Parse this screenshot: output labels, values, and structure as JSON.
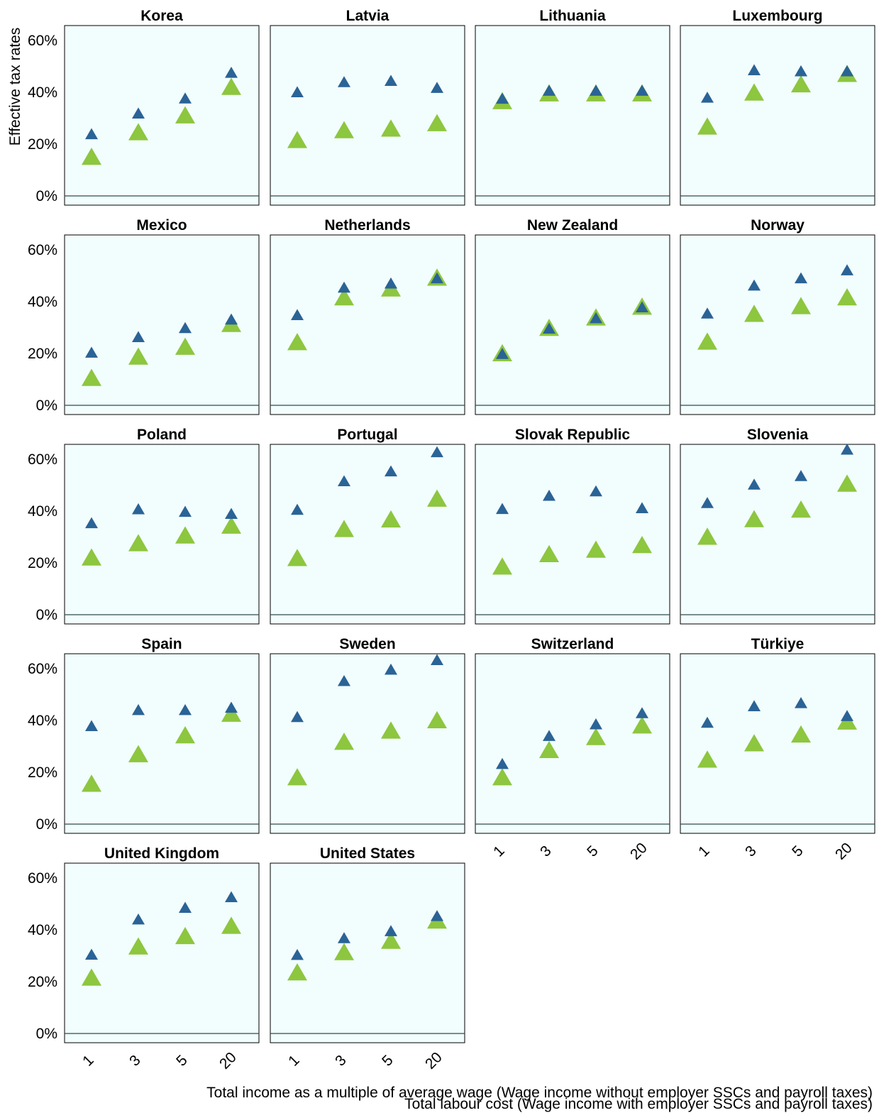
{
  "chart_data": {
    "type": "scatter",
    "ylabel": "Effective tax rates",
    "yticks": [
      "0%",
      "20%",
      "40%",
      "60%"
    ],
    "ylim": [
      -0.03,
      0.66
    ],
    "categories": [
      "1",
      "3",
      "5",
      "20"
    ],
    "colors": {
      "total_income": "#2a6396",
      "labour_cost": "#8dc63f",
      "panel_bg": "#f2fdfd",
      "zero_line": "#304b4b"
    },
    "legend": {
      "total_income": "Total income as a multiple of average wage (Wage income without employer SSCs and payroll taxes)",
      "labour_cost": "Total labour cost (Wage income with employer SSCs and payroll taxes)"
    },
    "panels": [
      {
        "title": "Korea",
        "total_income": [
          0.235,
          0.315,
          0.373,
          0.472
        ],
        "labour_cost": [
          0.145,
          0.24,
          0.305,
          0.415
        ]
      },
      {
        "title": "Latvia",
        "total_income": [
          0.397,
          0.436,
          0.441,
          0.414
        ],
        "labour_cost": [
          0.21,
          0.248,
          0.254,
          0.275
        ]
      },
      {
        "title": "Lithuania",
        "total_income": [
          0.372,
          0.403,
          0.403,
          0.403
        ],
        "labour_cost": [
          0.36,
          0.39,
          0.39,
          0.39
        ]
      },
      {
        "title": "Luxembourg",
        "total_income": [
          0.376,
          0.482,
          0.478,
          0.478
        ],
        "labour_cost": [
          0.262,
          0.393,
          0.425,
          0.465
        ]
      },
      {
        "title": "Mexico",
        "total_income": [
          0.2,
          0.26,
          0.295,
          0.328
        ],
        "labour_cost": [
          0.1,
          0.182,
          0.22,
          0.308
        ]
      },
      {
        "title": "Netherlands",
        "total_income": [
          0.345,
          0.451,
          0.467,
          0.487
        ],
        "labour_cost": [
          0.238,
          0.411,
          0.445,
          0.487
        ]
      },
      {
        "title": "New Zealand",
        "total_income": [
          0.195,
          0.293,
          0.333,
          0.375
        ],
        "labour_cost": [
          0.195,
          0.293,
          0.333,
          0.375
        ]
      },
      {
        "title": "Norway",
        "total_income": [
          0.351,
          0.459,
          0.487,
          0.518
        ],
        "labour_cost": [
          0.24,
          0.347,
          0.377,
          0.411
        ]
      },
      {
        "title": "Poland",
        "total_income": [
          0.35,
          0.404,
          0.394,
          0.386
        ],
        "labour_cost": [
          0.215,
          0.27,
          0.3,
          0.338
        ]
      },
      {
        "title": "Portugal",
        "total_income": [
          0.402,
          0.512,
          0.55,
          0.624
        ],
        "labour_cost": [
          0.213,
          0.325,
          0.362,
          0.442
        ]
      },
      {
        "title": "Slovak Republic",
        "total_income": [
          0.405,
          0.456,
          0.473,
          0.408
        ],
        "labour_cost": [
          0.18,
          0.228,
          0.245,
          0.263
        ]
      },
      {
        "title": "Slovenia",
        "total_income": [
          0.428,
          0.499,
          0.532,
          0.634
        ],
        "labour_cost": [
          0.295,
          0.363,
          0.4,
          0.5
        ]
      },
      {
        "title": "Spain",
        "total_income": [
          0.375,
          0.437,
          0.437,
          0.446
        ],
        "labour_cost": [
          0.15,
          0.264,
          0.337,
          0.42
        ]
      },
      {
        "title": "Sweden",
        "total_income": [
          0.41,
          0.549,
          0.593,
          0.63
        ],
        "labour_cost": [
          0.175,
          0.312,
          0.355,
          0.395
        ]
      },
      {
        "title": "Switzerland",
        "total_income": [
          0.229,
          0.337,
          0.382,
          0.425
        ],
        "labour_cost": [
          0.175,
          0.28,
          0.33,
          0.375
        ]
      },
      {
        "title": "Türkiye",
        "total_income": [
          0.388,
          0.452,
          0.464,
          0.414
        ],
        "labour_cost": [
          0.243,
          0.306,
          0.34,
          0.39
        ]
      },
      {
        "title": "United Kingdom",
        "total_income": [
          0.301,
          0.437,
          0.482,
          0.523
        ],
        "labour_cost": [
          0.21,
          0.33,
          0.37,
          0.41
        ]
      },
      {
        "title": "United States",
        "total_income": [
          0.3,
          0.365,
          0.392,
          0.45
        ],
        "labour_cost": [
          0.23,
          0.308,
          0.352,
          0.43
        ]
      }
    ]
  }
}
